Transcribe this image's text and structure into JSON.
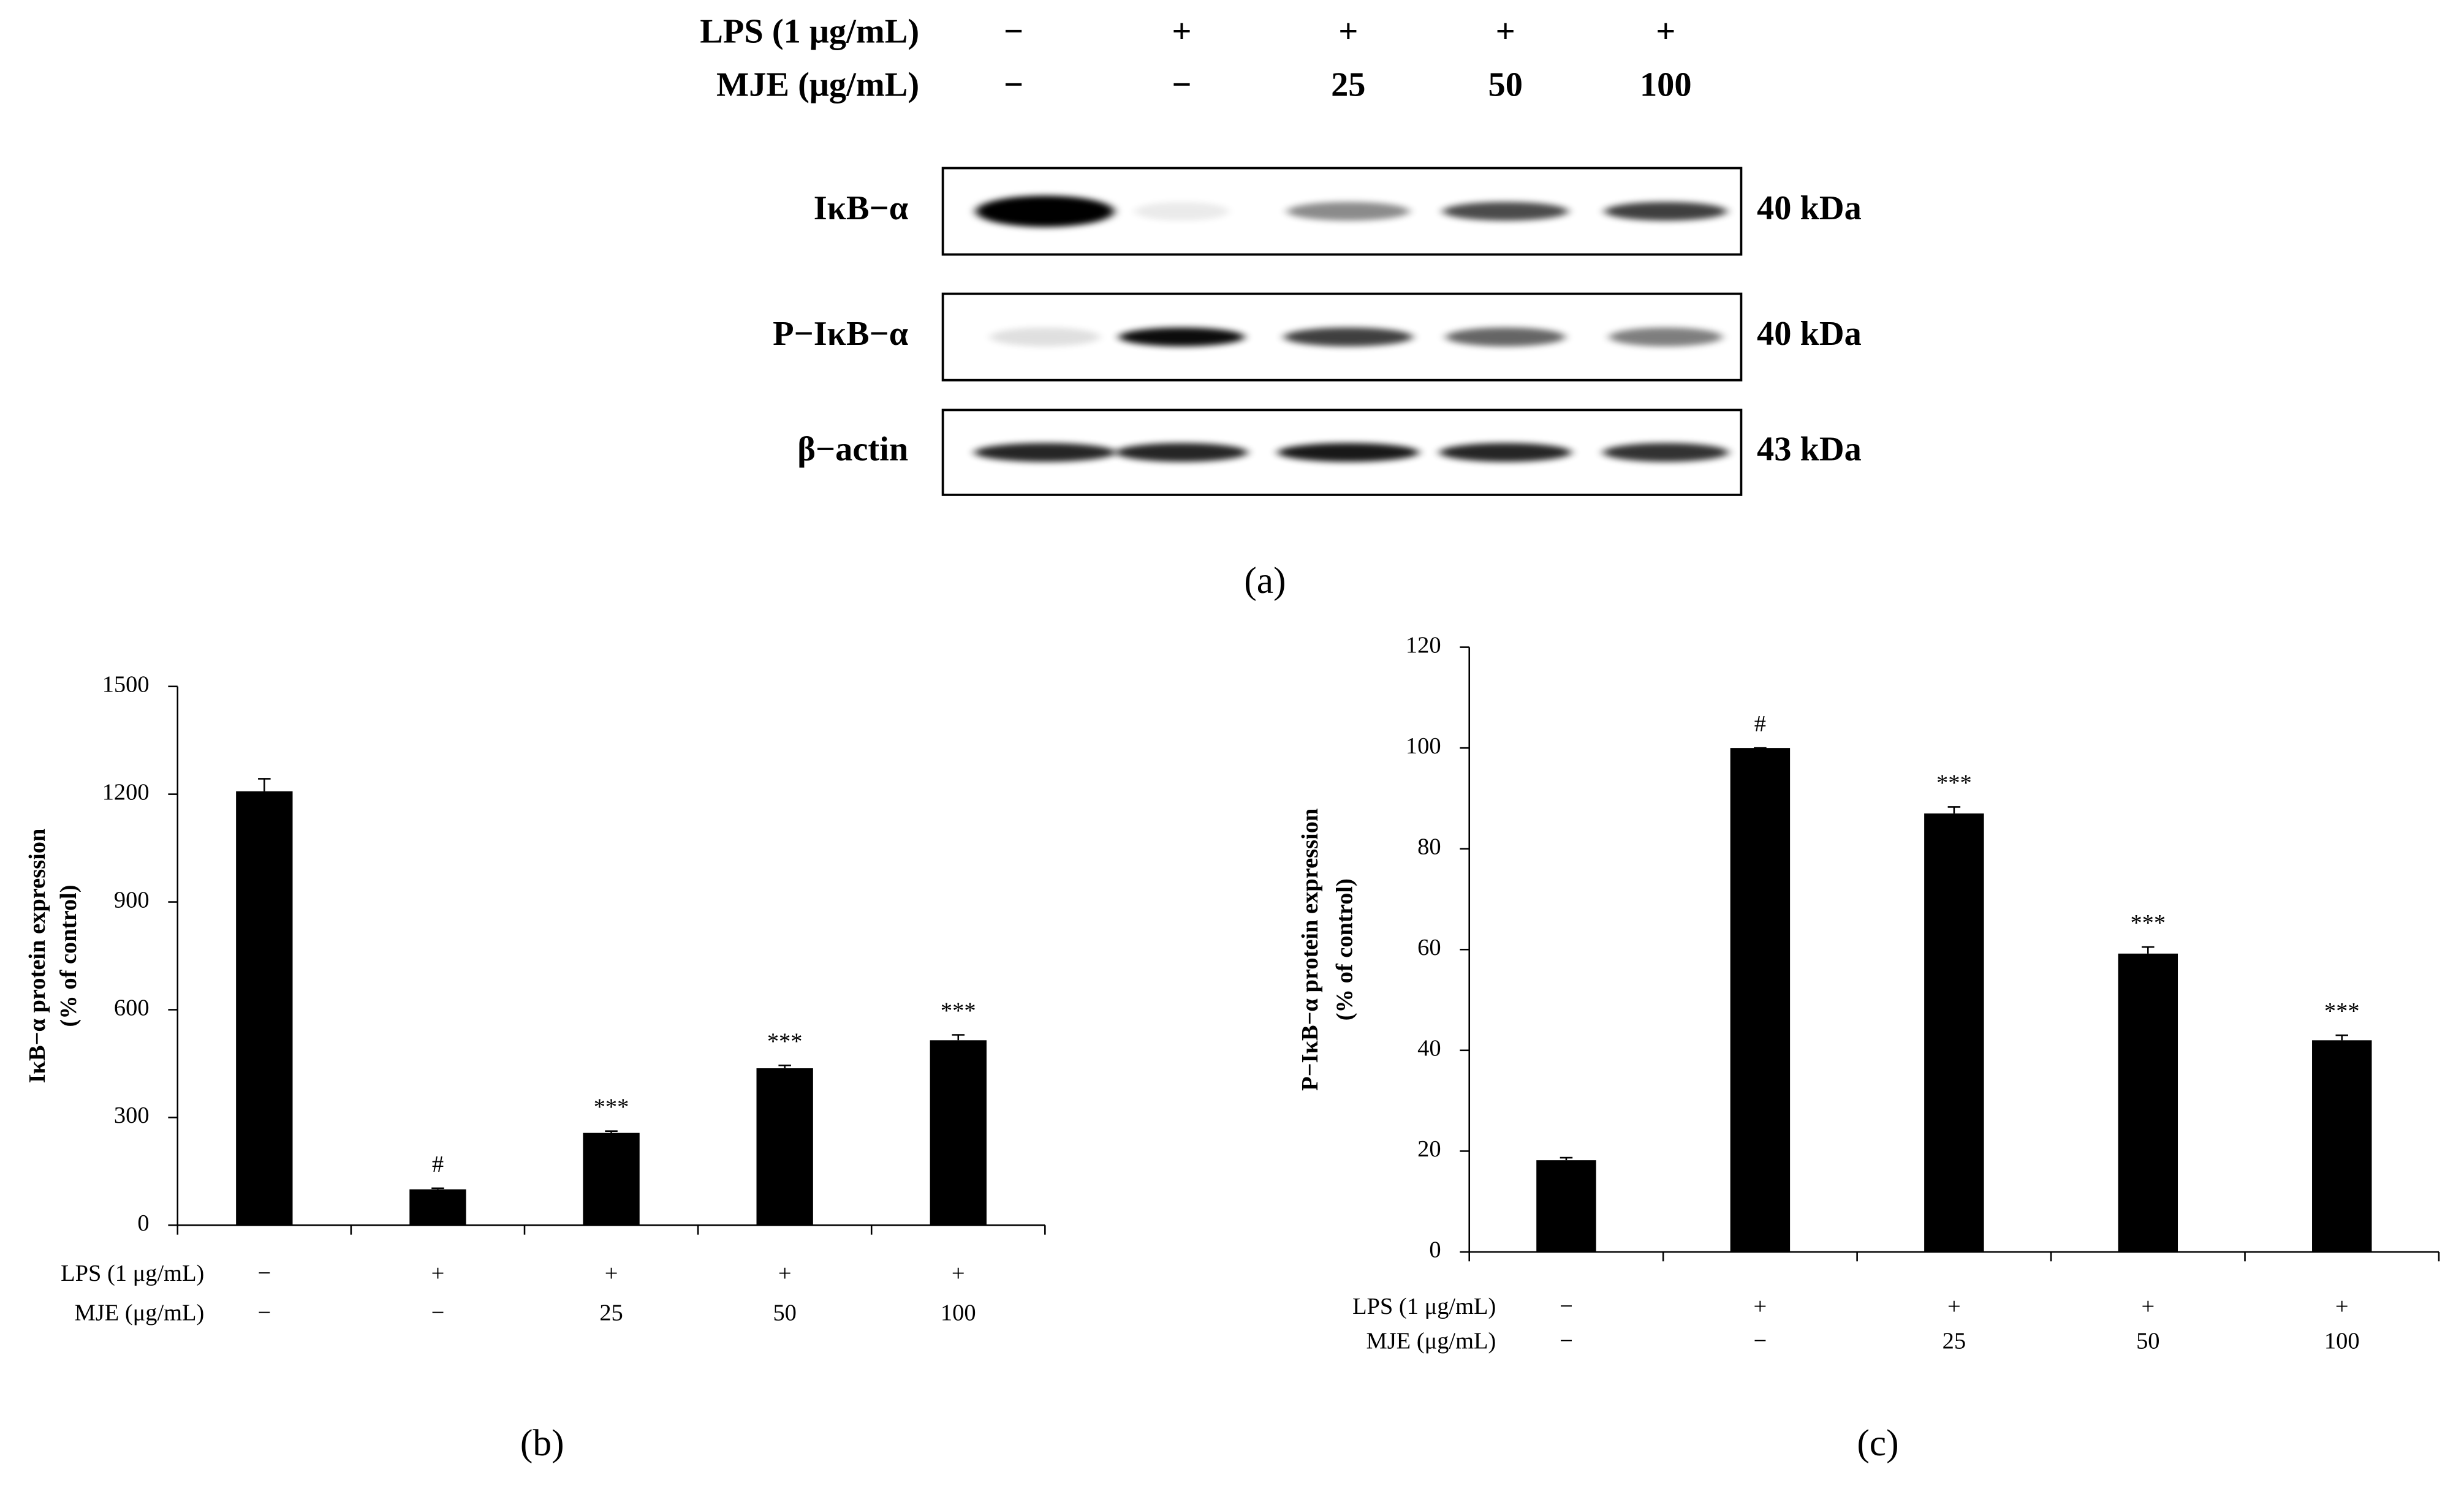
{
  "blot": {
    "lps_label": "LPS (1 μg/mL)",
    "mje_label": "MJE (μg/mL)",
    "lps": [
      "−",
      "+",
      "+",
      "+",
      "+"
    ],
    "mje": [
      "−",
      "−",
      "25",
      "50",
      "100"
    ],
    "rows": [
      {
        "label": "IκB−α",
        "size": "40 kDa"
      },
      {
        "label": "P−IκB−α",
        "size": "40 kDa"
      },
      {
        "label": "β−actin",
        "size": "43 kDa"
      }
    ],
    "caption": "(a)"
  },
  "chart_data": [
    {
      "type": "bar",
      "ylabel": [
        "IκB−α protein expression",
        "(% of control)"
      ],
      "x_label_rows": [
        {
          "label": "LPS (1 μg/mL)",
          "values": [
            "−",
            "+",
            "+",
            "+",
            "+"
          ]
        },
        {
          "label": "MJE (μg/mL)",
          "values": [
            "−",
            "−",
            "25",
            "50",
            "100"
          ]
        }
      ],
      "values": [
        1208,
        100,
        257,
        437,
        515
      ],
      "errors": [
        35,
        3,
        5,
        8,
        15
      ],
      "annotations": [
        null,
        "#",
        "***",
        "***",
        "***"
      ],
      "color": "#000000",
      "ylim": [
        0,
        1500
      ],
      "yticks": [
        0,
        300,
        600,
        900,
        1200,
        1500
      ],
      "caption": "(b)"
    },
    {
      "type": "bar",
      "ylabel": [
        "P−IκB−α protein expression",
        "(% of control)"
      ],
      "x_label_rows": [
        {
          "label": "LPS (1 μg/mL)",
          "values": [
            "−",
            "+",
            "+",
            "+",
            "+"
          ]
        },
        {
          "label": "MJE (μg/mL)",
          "values": [
            "−",
            "−",
            "25",
            "50",
            "100"
          ]
        }
      ],
      "values": [
        18.2,
        100,
        87,
        59.2,
        42
      ],
      "errors": [
        0.5,
        0,
        1.3,
        1.3,
        1
      ],
      "annotations": [
        null,
        "#",
        "***",
        "***",
        "***"
      ],
      "color": "#000000",
      "ylim": [
        0,
        120
      ],
      "yticks": [
        0,
        20,
        40,
        60,
        80,
        100,
        120
      ],
      "caption": "(c)"
    }
  ]
}
